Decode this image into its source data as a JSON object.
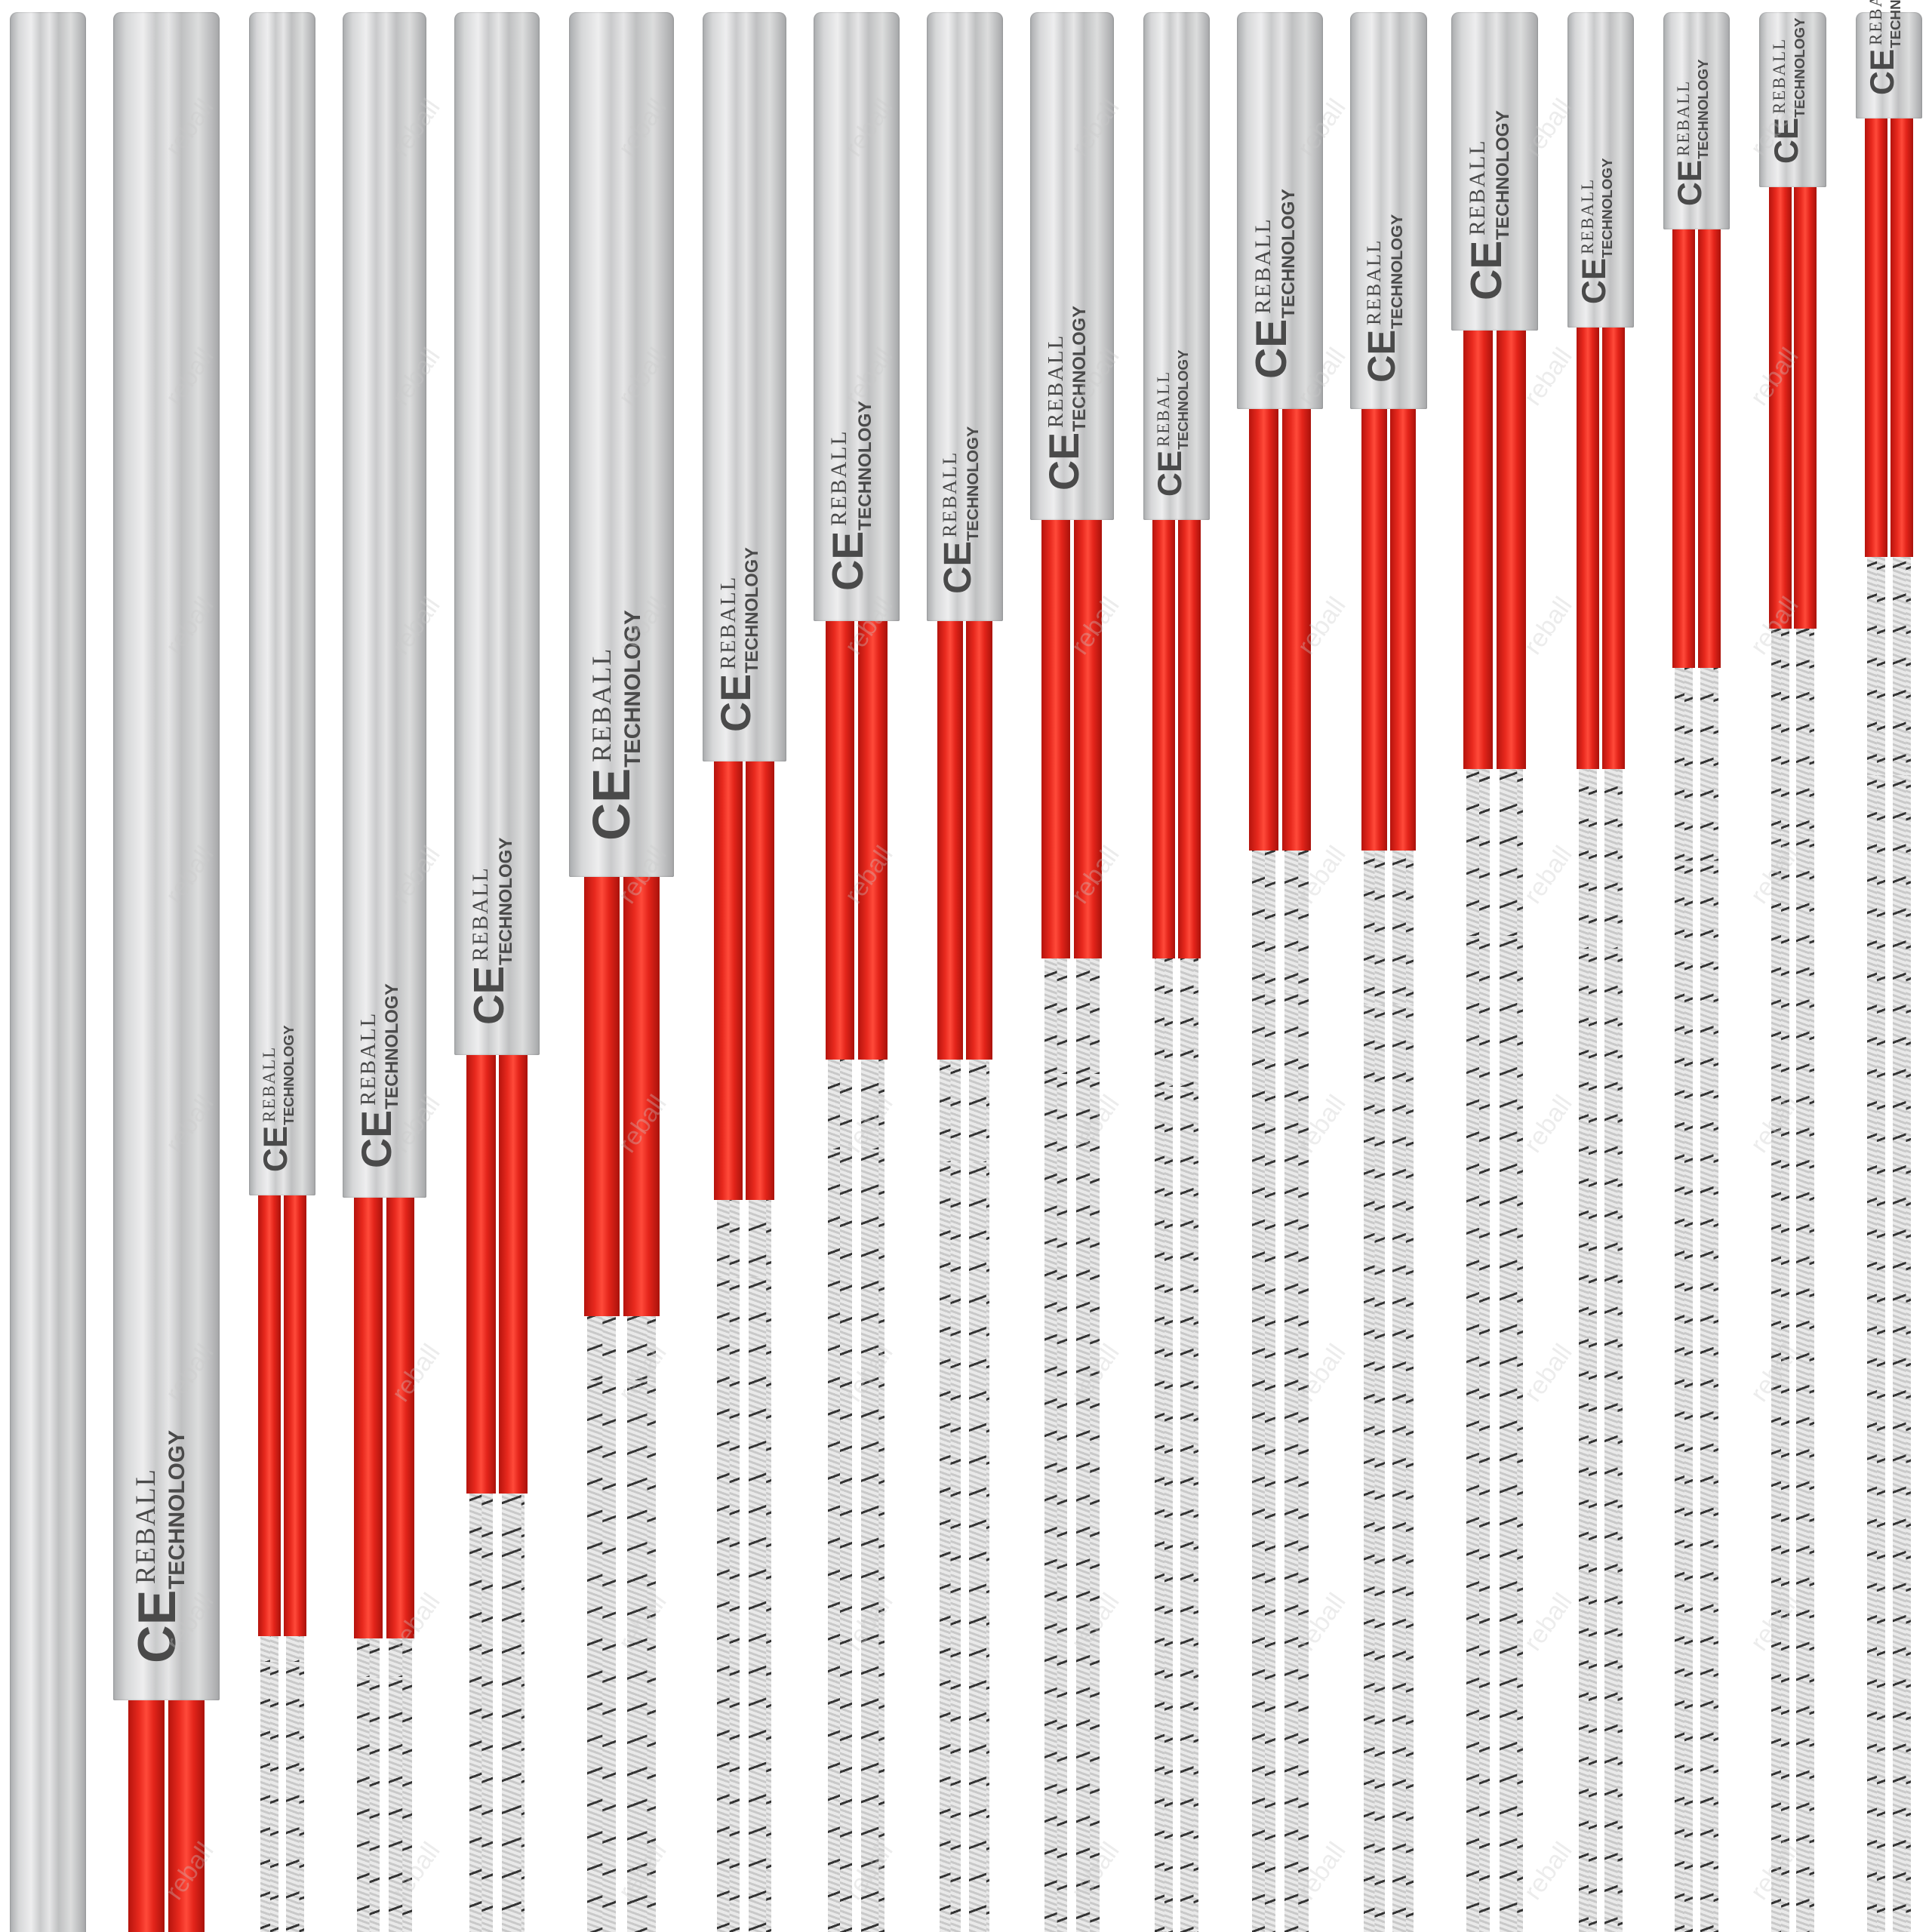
{
  "image": {
    "subject": "cartridge heaters with red and braided lead wires",
    "heater_count": 18,
    "label_line1": "REBALL",
    "label_line2": "TECHNOLOGY",
    "mark": "CE",
    "watermark": "reball",
    "colors": {
      "background": "#ffffff",
      "metal": "#d6d7d8",
      "lead_red": "#e8291e",
      "braid_white": "#e6e6e6",
      "braid_black": "#333333",
      "engraving": "#4a4a4a"
    }
  }
}
